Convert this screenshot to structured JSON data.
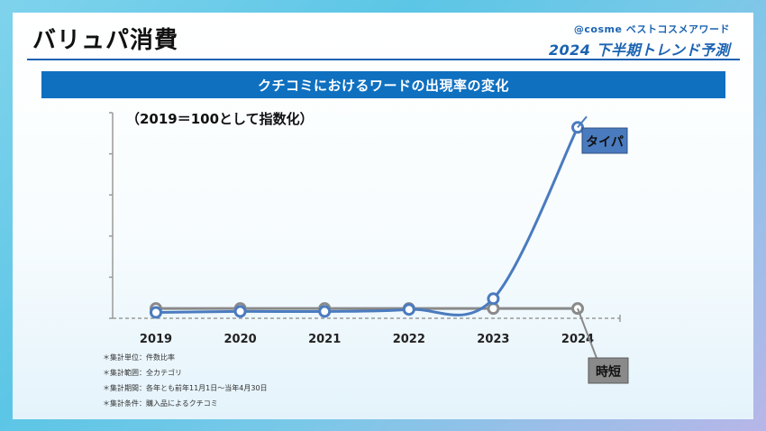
{
  "page": {
    "title": "バリュパ消費",
    "brand_line1": "@cosme ベストコスメアワード",
    "brand_line2": "2024 下半期トレンド予測"
  },
  "banner": {
    "text": "クチコミにおけるワードの出現率の変化"
  },
  "colors": {
    "accent_blue": "#1b63b2",
    "banner_blue": "#0f70c0",
    "taipa_series": "#4a7bbf",
    "jitan_series": "#8a8a8a"
  },
  "chart_data": {
    "type": "line",
    "title": "（2019＝100として指数化）",
    "x": [
      "2019",
      "2020",
      "2021",
      "2022",
      "2023",
      "2024"
    ],
    "series": [
      {
        "name": "タイパ",
        "values": [
          96,
          97,
          97,
          99,
          110,
          285
        ]
      },
      {
        "name": "時短",
        "values": [
          100,
          100,
          100,
          100,
          100,
          100
        ]
      }
    ],
    "ylim": [
      90,
      300
    ],
    "ytick_marks": 6,
    "grid": false,
    "legend": "series names labeled at line ends"
  },
  "notes": [
    "＊集計単位：件数比率",
    "＊集計範囲：全カテゴリ",
    "＊集計期間：各年とも前年11月1日～当年4月30日",
    "＊集計条件：購入品によるクチコミ"
  ]
}
